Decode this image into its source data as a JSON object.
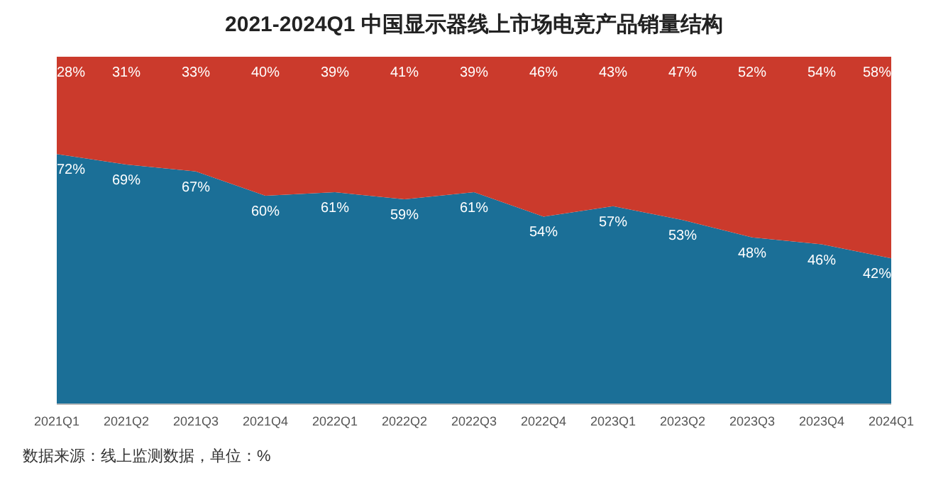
{
  "chart_data": {
    "type": "area",
    "title": "2021-2024Q1 中国显示器线上市场电竞产品销量结构",
    "categories": [
      "2021Q1",
      "2021Q2",
      "2021Q3",
      "2021Q4",
      "2022Q1",
      "2022Q2",
      "2022Q3",
      "2022Q4",
      "2023Q1",
      "2023Q2",
      "2023Q3",
      "2023Q4",
      "2024Q1"
    ],
    "series": [
      {
        "color": "#1b6f97",
        "values": [
          72,
          69,
          67,
          60,
          61,
          59,
          61,
          54,
          57,
          53,
          48,
          46,
          42
        ],
        "value_labels": [
          "72%",
          "69%",
          "67%",
          "60%",
          "61%",
          "59%",
          "61%",
          "54%",
          "57%",
          "53%",
          "48%",
          "46%",
          "42%"
        ]
      },
      {
        "color": "#cb3a2c",
        "values": [
          28,
          31,
          33,
          40,
          39,
          41,
          39,
          46,
          43,
          47,
          52,
          54,
          58
        ],
        "value_labels": [
          "28%",
          "31%",
          "33%",
          "40%",
          "39%",
          "41%",
          "39%",
          "46%",
          "43%",
          "47%",
          "52%",
          "54%",
          "58%"
        ]
      }
    ],
    "stacked": true,
    "tick_labels": "x",
    "annotations": [
      "数据来源：线上监测数据，单位：%"
    ]
  }
}
